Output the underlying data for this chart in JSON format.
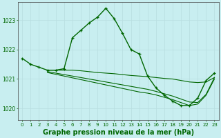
{
  "title": "Graphe pression niveau de la mer (hPa)",
  "bg_color": "#c8eef0",
  "grid_color": "#b8dde0",
  "line_color": "#006600",
  "xlim": [
    -0.5,
    23.5
  ],
  "ylim": [
    1019.6,
    1023.6
  ],
  "yticks": [
    1020,
    1021,
    1022,
    1023
  ],
  "xticks": [
    0,
    1,
    2,
    3,
    4,
    5,
    6,
    7,
    8,
    9,
    10,
    11,
    12,
    13,
    14,
    15,
    16,
    17,
    18,
    19,
    20,
    21,
    22,
    23
  ],
  "series": [
    {
      "x": [
        0,
        1,
        2,
        3,
        4,
        5,
        6,
        7,
        8,
        9,
        10,
        11,
        12,
        13,
        14,
        15,
        16,
        17,
        18,
        19,
        20,
        21,
        22,
        23
      ],
      "y": [
        1021.7,
        1021.5,
        1021.4,
        1021.3,
        1021.3,
        1021.35,
        1022.4,
        1022.65,
        1022.9,
        1023.1,
        1023.4,
        1023.05,
        1022.55,
        1022.0,
        1021.85,
        1021.1,
        1020.7,
        1020.45,
        1020.25,
        1020.1,
        1020.1,
        1020.35,
        1020.95,
        1021.2
      ],
      "marker": true,
      "linewidth": 1.0
    },
    {
      "x": [
        3,
        4,
        5,
        6,
        7,
        8,
        9,
        10,
        11,
        12,
        13,
        14,
        15,
        16,
        17,
        18,
        19,
        20,
        21,
        22,
        23
      ],
      "y": [
        1021.3,
        1021.3,
        1021.3,
        1021.3,
        1021.28,
        1021.25,
        1021.22,
        1021.2,
        1021.18,
        1021.15,
        1021.12,
        1021.1,
        1021.08,
        1021.05,
        1021.02,
        1021.0,
        1020.95,
        1020.9,
        1020.88,
        1020.9,
        1021.05
      ],
      "marker": false,
      "linewidth": 0.8
    },
    {
      "x": [
        3,
        4,
        5,
        6,
        7,
        8,
        9,
        10,
        11,
        12,
        13,
        14,
        15,
        16,
        17,
        18,
        19,
        20,
        21,
        22,
        23
      ],
      "y": [
        1021.25,
        1021.2,
        1021.15,
        1021.1,
        1021.05,
        1021.0,
        1020.95,
        1020.9,
        1020.85,
        1020.8,
        1020.75,
        1020.7,
        1020.65,
        1020.58,
        1020.5,
        1020.42,
        1020.32,
        1020.22,
        1020.2,
        1020.48,
        1021.05
      ],
      "marker": false,
      "linewidth": 0.8
    },
    {
      "x": [
        3,
        4,
        5,
        6,
        7,
        8,
        9,
        10,
        11,
        12,
        13,
        14,
        15,
        16,
        17,
        18,
        19,
        20,
        21,
        22,
        23
      ],
      "y": [
        1021.22,
        1021.16,
        1021.1,
        1021.04,
        1020.98,
        1020.92,
        1020.86,
        1020.8,
        1020.74,
        1020.68,
        1020.62,
        1020.56,
        1020.52,
        1020.46,
        1020.38,
        1020.3,
        1020.2,
        1020.1,
        1020.15,
        1020.45,
        1021.0
      ],
      "marker": false,
      "linewidth": 0.8
    }
  ],
  "title_fontsize": 7,
  "tick_fontsize": 5,
  "tick_color": "#006600",
  "axis_color": "#444444",
  "figsize": [
    3.2,
    2.0
  ],
  "dpi": 100
}
